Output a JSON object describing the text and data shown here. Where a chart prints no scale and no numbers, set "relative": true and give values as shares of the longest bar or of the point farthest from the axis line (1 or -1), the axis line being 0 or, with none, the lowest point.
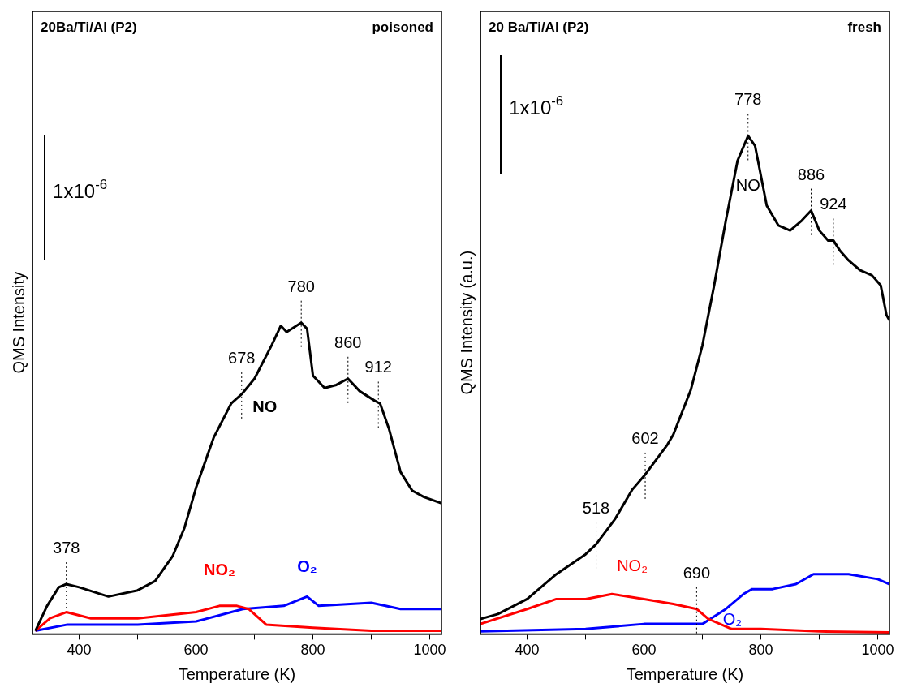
{
  "chart_data": [
    {
      "type": "line",
      "title": "20Ba/Ti/Al (P2)",
      "subtitle": "poisoned",
      "xlabel": "Temperature (K)",
      "ylabel": "QMS Intensity",
      "relative": true,
      "legend": false,
      "grid": false,
      "marker": "none",
      "line_style": "solid",
      "xlim": [
        320,
        1020
      ],
      "xticks": [
        400,
        {
          "value": 500,
          "label": null
        },
        600,
        {
          "value": 700,
          "label": null
        },
        800,
        {
          "value": 900,
          "label": null
        },
        1000
      ],
      "series": [
        {
          "name": "NO",
          "color": "#000000",
          "x": [
            325,
            345,
            365,
            378,
            400,
            450,
            500,
            530,
            560,
            580,
            600,
            630,
            660,
            678,
            700,
            730,
            745,
            755,
            780,
            790,
            800,
            820,
            840,
            860,
            880,
            905,
            915,
            930,
            950,
            970,
            990,
            1020
          ],
          "values": [
            0.01,
            0.09,
            0.15,
            0.16,
            0.15,
            0.12,
            0.14,
            0.17,
            0.25,
            0.34,
            0.47,
            0.63,
            0.74,
            0.77,
            0.82,
            0.93,
            0.99,
            0.97,
            1,
            0.98,
            0.83,
            0.79,
            0.8,
            0.82,
            0.78,
            0.75,
            0.74,
            0.66,
            0.52,
            0.46,
            0.44,
            0.42
          ]
        },
        {
          "name": "NO₂",
          "color": "#ff0000",
          "x": [
            325,
            350,
            378,
            420,
            500,
            600,
            640,
            670,
            690,
            720,
            800,
            900,
            1020
          ],
          "values": [
            0.01,
            0.05,
            0.07,
            0.05,
            0.05,
            0.07,
            0.09,
            0.09,
            0.08,
            0.03,
            0.02,
            0.01,
            0.01
          ]
        },
        {
          "name": "O₂",
          "color": "#0000ff",
          "x": [
            325,
            380,
            500,
            600,
            680,
            750,
            790,
            810,
            900,
            950,
            1020
          ],
          "values": [
            0.01,
            0.03,
            0.03,
            0.04,
            0.08,
            0.09,
            0.12,
            0.09,
            0.1,
            0.08,
            0.08
          ]
        }
      ],
      "annotations": [
        "1x10$^{-6}$",
        {
          "text": "378",
          "x": 378,
          "y": 0.16
        },
        {
          "text": "678",
          "x": 678,
          "y": 0.77
        },
        {
          "text": "780",
          "x": 780,
          "y": 1
        },
        {
          "text": "860",
          "x": 860,
          "y": 0.82
        },
        {
          "text": "912",
          "x": 912,
          "y": 0.74
        }
      ]
    },
    {
      "type": "line",
      "title": "20 Ba/Ti/Al (P2)",
      "subtitle": "fresh",
      "xlabel": "Temperature (K)",
      "ylabel": "QMS Intensity (a.u.)",
      "relative": true,
      "legend": false,
      "grid": false,
      "marker": "none",
      "line_style": "solid",
      "xlim": [
        320,
        1020
      ],
      "xticks": [
        400,
        {
          "value": 500,
          "label": null
        },
        600,
        {
          "value": 700,
          "label": null
        },
        800,
        {
          "value": 900,
          "label": null
        },
        1000
      ],
      "series": [
        {
          "name": "NO",
          "color": "#000000",
          "x": [
            320,
            350,
            400,
            450,
            500,
            518,
            550,
            580,
            602,
            640,
            650,
            680,
            700,
            720,
            740,
            760,
            778,
            790,
            810,
            830,
            850,
            870,
            886,
            900,
            915,
            924,
            935,
            950,
            970,
            990,
            1005,
            1015,
            1020
          ],
          "values": [
            0.03,
            0.04,
            0.07,
            0.12,
            0.16,
            0.18,
            0.23,
            0.29,
            0.32,
            0.38,
            0.4,
            0.49,
            0.58,
            0.7,
            0.83,
            0.95,
            1,
            0.98,
            0.86,
            0.82,
            0.81,
            0.83,
            0.85,
            0.81,
            0.79,
            0.79,
            0.77,
            0.75,
            0.73,
            0.72,
            0.7,
            0.64,
            0.63
          ]
        },
        {
          "name": "NO₂",
          "color": "#ff0000",
          "x": [
            320,
            400,
            450,
            500,
            545,
            600,
            650,
            690,
            710,
            750,
            800,
            900,
            1020
          ],
          "values": [
            0.02,
            0.05,
            0.07,
            0.07,
            0.08,
            0.07,
            0.06,
            0.05,
            0.03,
            0.01,
            0.01,
            0.005,
            0.003
          ]
        },
        {
          "name": "O₂",
          "color": "#0000ff",
          "x": [
            320,
            500,
            600,
            700,
            740,
            770,
            785,
            820,
            860,
            890,
            950,
            1000,
            1020
          ],
          "values": [
            0.005,
            0.01,
            0.02,
            0.02,
            0.05,
            0.08,
            0.09,
            0.09,
            0.1,
            0.12,
            0.12,
            0.11,
            0.1
          ]
        }
      ],
      "annotations": [
        "1x10$^{-6}$",
        {
          "text": "518",
          "x": 518,
          "y": 0.18
        },
        {
          "text": "602",
          "x": 602,
          "y": 0.32
        },
        {
          "text": "690",
          "x": 690,
          "y": 0.05
        },
        {
          "text": "778",
          "x": 778,
          "y": 1
        },
        {
          "text": "886",
          "x": 886,
          "y": 0.85
        },
        {
          "text": "924",
          "x": 924,
          "y": 0.79
        }
      ]
    }
  ]
}
